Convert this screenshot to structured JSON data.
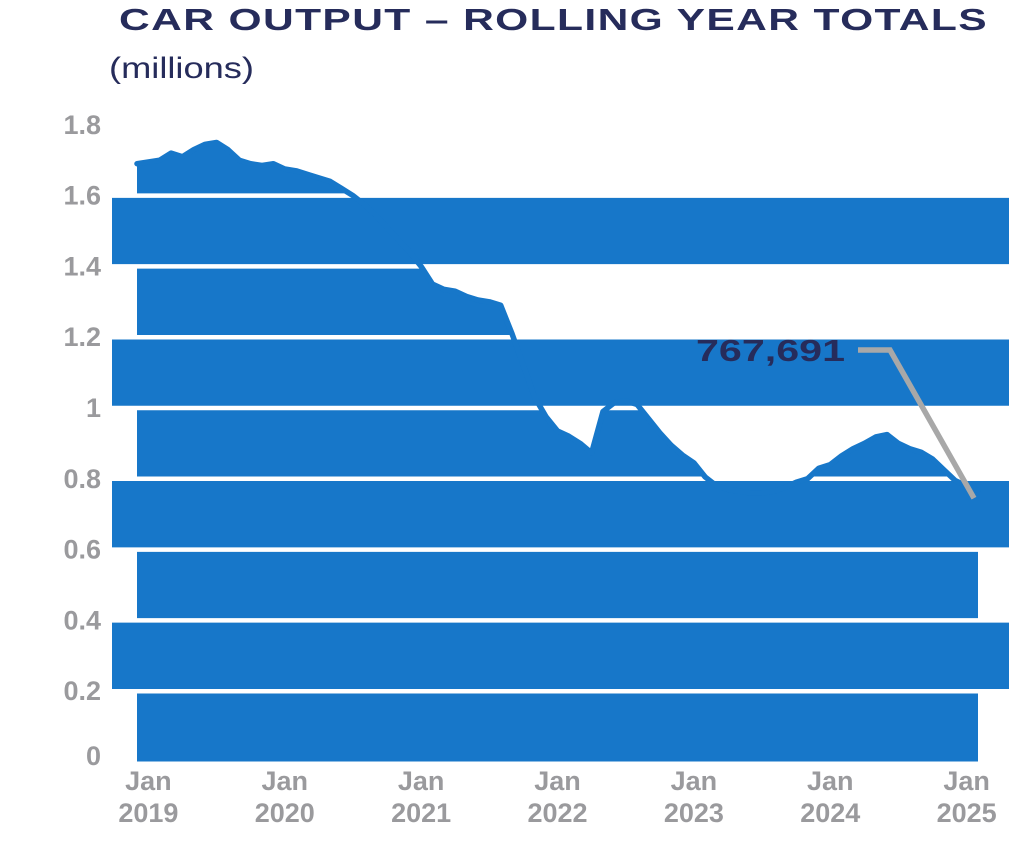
{
  "title": "CAR OUTPUT – ROLLING YEAR TOTALS",
  "subtitle": "(millions)",
  "colors": {
    "blue": "#1777C9",
    "navy": "#262C5B",
    "axis_label_gray": "#9A9A9D",
    "callout_gray": "#A8A8A8",
    "gridline_white": "#FFFFFF",
    "background": "#FFFFFF"
  },
  "y_axis": {
    "ticks": [
      {
        "label": "1.8",
        "value": 1.8
      },
      {
        "label": "1.6",
        "value": 1.6
      },
      {
        "label": "1.4",
        "value": 1.4
      },
      {
        "label": "1.2",
        "value": 1.2
      },
      {
        "label": "1",
        "value": 1.0
      },
      {
        "label": "0.8",
        "value": 0.8
      },
      {
        "label": "0.6",
        "value": 0.6
      },
      {
        "label": "0.4",
        "value": 0.4
      },
      {
        "label": "0.2",
        "value": 0.2
      },
      {
        "label": "0",
        "value": 0.0
      }
    ]
  },
  "x_axis": {
    "ticks": [
      {
        "line1": "Jan",
        "line2": "2019",
        "month_index": 1
      },
      {
        "line1": "Jan",
        "line2": "2020",
        "month_index": 13
      },
      {
        "line1": "Jan",
        "line2": "2021",
        "month_index": 25
      },
      {
        "line1": "Jan",
        "line2": "2022",
        "month_index": 37
      },
      {
        "line1": "Jan",
        "line2": "2023",
        "month_index": 49
      },
      {
        "line1": "Jan",
        "line2": "2024",
        "month_index": 61
      },
      {
        "line1": "Jan",
        "line2": "2025",
        "month_index": 73
      }
    ]
  },
  "annotation": {
    "label": "767,691",
    "value_millions": 0.767691,
    "points_to": "2025-02"
  },
  "chart_data": {
    "type": "area",
    "title": "CAR OUTPUT – ROLLING YEAR TOTALS",
    "unit": "millions",
    "ylim": [
      0,
      1.8
    ],
    "y_tick_step": 0.2,
    "grid": true,
    "legend": false,
    "style": {
      "banded_background": true,
      "band_ranges": [
        [
          0.2,
          0.4
        ],
        [
          0.6,
          0.8
        ],
        [
          1.0,
          1.2
        ],
        [
          1.4,
          1.6
        ]
      ]
    },
    "x": [
      "2018-12",
      "2019-01",
      "2019-02",
      "2019-03",
      "2019-04",
      "2019-05",
      "2019-06",
      "2019-07",
      "2019-08",
      "2019-09",
      "2019-10",
      "2019-11",
      "2019-12",
      "2020-01",
      "2020-02",
      "2020-03",
      "2020-04",
      "2020-05",
      "2020-06",
      "2020-07",
      "2020-08",
      "2020-09",
      "2020-10",
      "2020-11",
      "2020-12",
      "2021-01",
      "2021-02",
      "2021-03",
      "2021-04",
      "2021-05",
      "2021-06",
      "2021-07",
      "2021-08",
      "2021-09",
      "2021-10",
      "2021-11",
      "2021-12",
      "2022-01",
      "2022-02",
      "2022-03",
      "2022-04",
      "2022-05",
      "2022-06",
      "2022-07",
      "2022-08",
      "2022-09",
      "2022-10",
      "2022-11",
      "2022-12",
      "2023-01",
      "2023-02",
      "2023-03",
      "2023-04",
      "2023-05",
      "2023-06",
      "2023-07",
      "2023-08",
      "2023-09",
      "2023-10",
      "2023-11",
      "2023-12",
      "2024-01",
      "2024-02",
      "2024-03",
      "2024-04",
      "2024-05",
      "2024-06",
      "2024-07",
      "2024-08",
      "2024-09",
      "2024-10",
      "2024-11",
      "2024-12",
      "2025-01",
      "2025-02"
    ],
    "values": [
      1.69,
      1.695,
      1.7,
      1.72,
      1.71,
      1.73,
      1.745,
      1.75,
      1.73,
      1.7,
      1.69,
      1.685,
      1.69,
      1.675,
      1.67,
      1.66,
      1.65,
      1.64,
      1.62,
      1.6,
      1.575,
      1.545,
      1.51,
      1.475,
      1.44,
      1.4,
      1.35,
      1.335,
      1.33,
      1.315,
      1.305,
      1.3,
      1.29,
      1.21,
      1.12,
      1.03,
      0.975,
      0.935,
      0.92,
      0.9,
      0.873,
      0.99,
      1.015,
      1.02,
      1.01,
      0.97,
      0.93,
      0.895,
      0.867,
      0.845,
      0.805,
      0.78,
      0.77,
      0.765,
      0.76,
      0.76,
      0.765,
      0.775,
      0.79,
      0.8,
      0.83,
      0.84,
      0.865,
      0.885,
      0.9,
      0.918,
      0.925,
      0.9,
      0.885,
      0.875,
      0.856,
      0.825,
      0.795,
      0.78,
      0.7677
    ],
    "last_point_label": "767,691"
  }
}
